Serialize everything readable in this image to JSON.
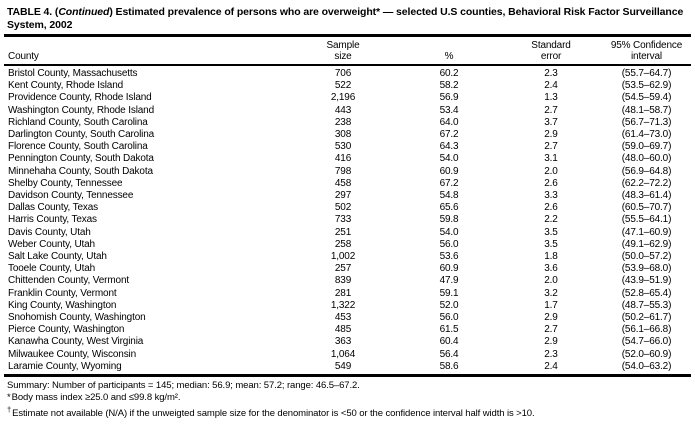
{
  "title": {
    "prefix": "TABLE 4. (",
    "continued": "Continued",
    "suffix": ") Estimated prevalence of persons who are overweight* — selected U.S counties, Behavioral Risk Factor Surveillance System, 2002"
  },
  "table": {
    "columns": [
      {
        "l1": "",
        "l2": "County"
      },
      {
        "l1": "Sample",
        "l2": "size"
      },
      {
        "l1": "",
        "l2": "%"
      },
      {
        "l1": "Standard",
        "l2": "error"
      },
      {
        "l1": "95% Confidence",
        "l2": "interval"
      }
    ],
    "rows": [
      [
        "Bristol County, Massachusetts",
        "706",
        "60.2",
        "2.3",
        "(55.7–64.7)"
      ],
      [
        "Kent County, Rhode Island",
        "522",
        "58.2",
        "2.4",
        "(53.5–62.9)"
      ],
      [
        "Providence County, Rhode Island",
        "2,196",
        "56.9",
        "1.3",
        "(54.5–59.4)"
      ],
      [
        "Washington County, Rhode Island",
        "443",
        "53.4",
        "2.7",
        "(48.1–58.7)"
      ],
      [
        "Richland County, South Carolina",
        "238",
        "64.0",
        "3.7",
        "(56.7–71.3)"
      ],
      [
        "Darlington County, South Carolina",
        "308",
        "67.2",
        "2.9",
        "(61.4–73.0)"
      ],
      [
        "Florence County, South Carolina",
        "530",
        "64.3",
        "2.7",
        "(59.0–69.7)"
      ],
      [
        "Pennington County, South Dakota",
        "416",
        "54.0",
        "3.1",
        "(48.0–60.0)"
      ],
      [
        "Minnehaha County, South Dakota",
        "798",
        "60.9",
        "2.0",
        "(56.9–64.8)"
      ],
      [
        "Shelby County, Tennessee",
        "458",
        "67.2",
        "2.6",
        "(62.2–72.2)"
      ],
      [
        "Davidson County, Tennessee",
        "297",
        "54.8",
        "3.3",
        "(48.3–61.4)"
      ],
      [
        "Dallas County, Texas",
        "502",
        "65.6",
        "2.6",
        "(60.5–70.7)"
      ],
      [
        "Harris County, Texas",
        "733",
        "59.8",
        "2.2",
        "(55.5–64.1)"
      ],
      [
        "Davis County, Utah",
        "251",
        "54.0",
        "3.5",
        "(47.1–60.9)"
      ],
      [
        "Weber County, Utah",
        "258",
        "56.0",
        "3.5",
        "(49.1–62.9)"
      ],
      [
        "Salt Lake County, Utah",
        "1,002",
        "53.6",
        "1.8",
        "(50.0–57.2)"
      ],
      [
        "Tooele County, Utah",
        "257",
        "60.9",
        "3.6",
        "(53.9–68.0)"
      ],
      [
        "Chittenden County, Vermont",
        "839",
        "47.9",
        "2.0",
        "(43.9–51.9)"
      ],
      [
        "Franklin County, Vermont",
        "281",
        "59.1",
        "3.2",
        "(52.8–65.4)"
      ],
      [
        "King County, Washington",
        "1,322",
        "52.0",
        "1.7",
        "(48.7–55.3)"
      ],
      [
        "Snohomish County, Washington",
        "453",
        "56.0",
        "2.9",
        "(50.2–61.7)"
      ],
      [
        "Pierce County, Washington",
        "485",
        "61.5",
        "2.7",
        "(56.1–66.8)"
      ],
      [
        "Kanawha County, West Virginia",
        "363",
        "60.4",
        "2.9",
        "(54.7–66.0)"
      ],
      [
        "Milwaukee County, Wisconsin",
        "1,064",
        "56.4",
        "2.3",
        "(52.0–60.9)"
      ],
      [
        "Laramie County, Wyoming",
        "549",
        "58.6",
        "2.4",
        "(54.0–63.2)"
      ]
    ]
  },
  "summary": "Summary: Number of participants = 145; median: 56.9; mean: 57.2; range: 46.5–67.2.",
  "footnotes": {
    "star_marker": "*",
    "star_text": "Body mass index ≥25.0 and ≤99.8 kg/m².",
    "dagger_marker": "†",
    "dagger_text": "Estimate not available (N/A) if the unweigted sample size for the denominator is <50 or the confidence interval half width is >10."
  }
}
